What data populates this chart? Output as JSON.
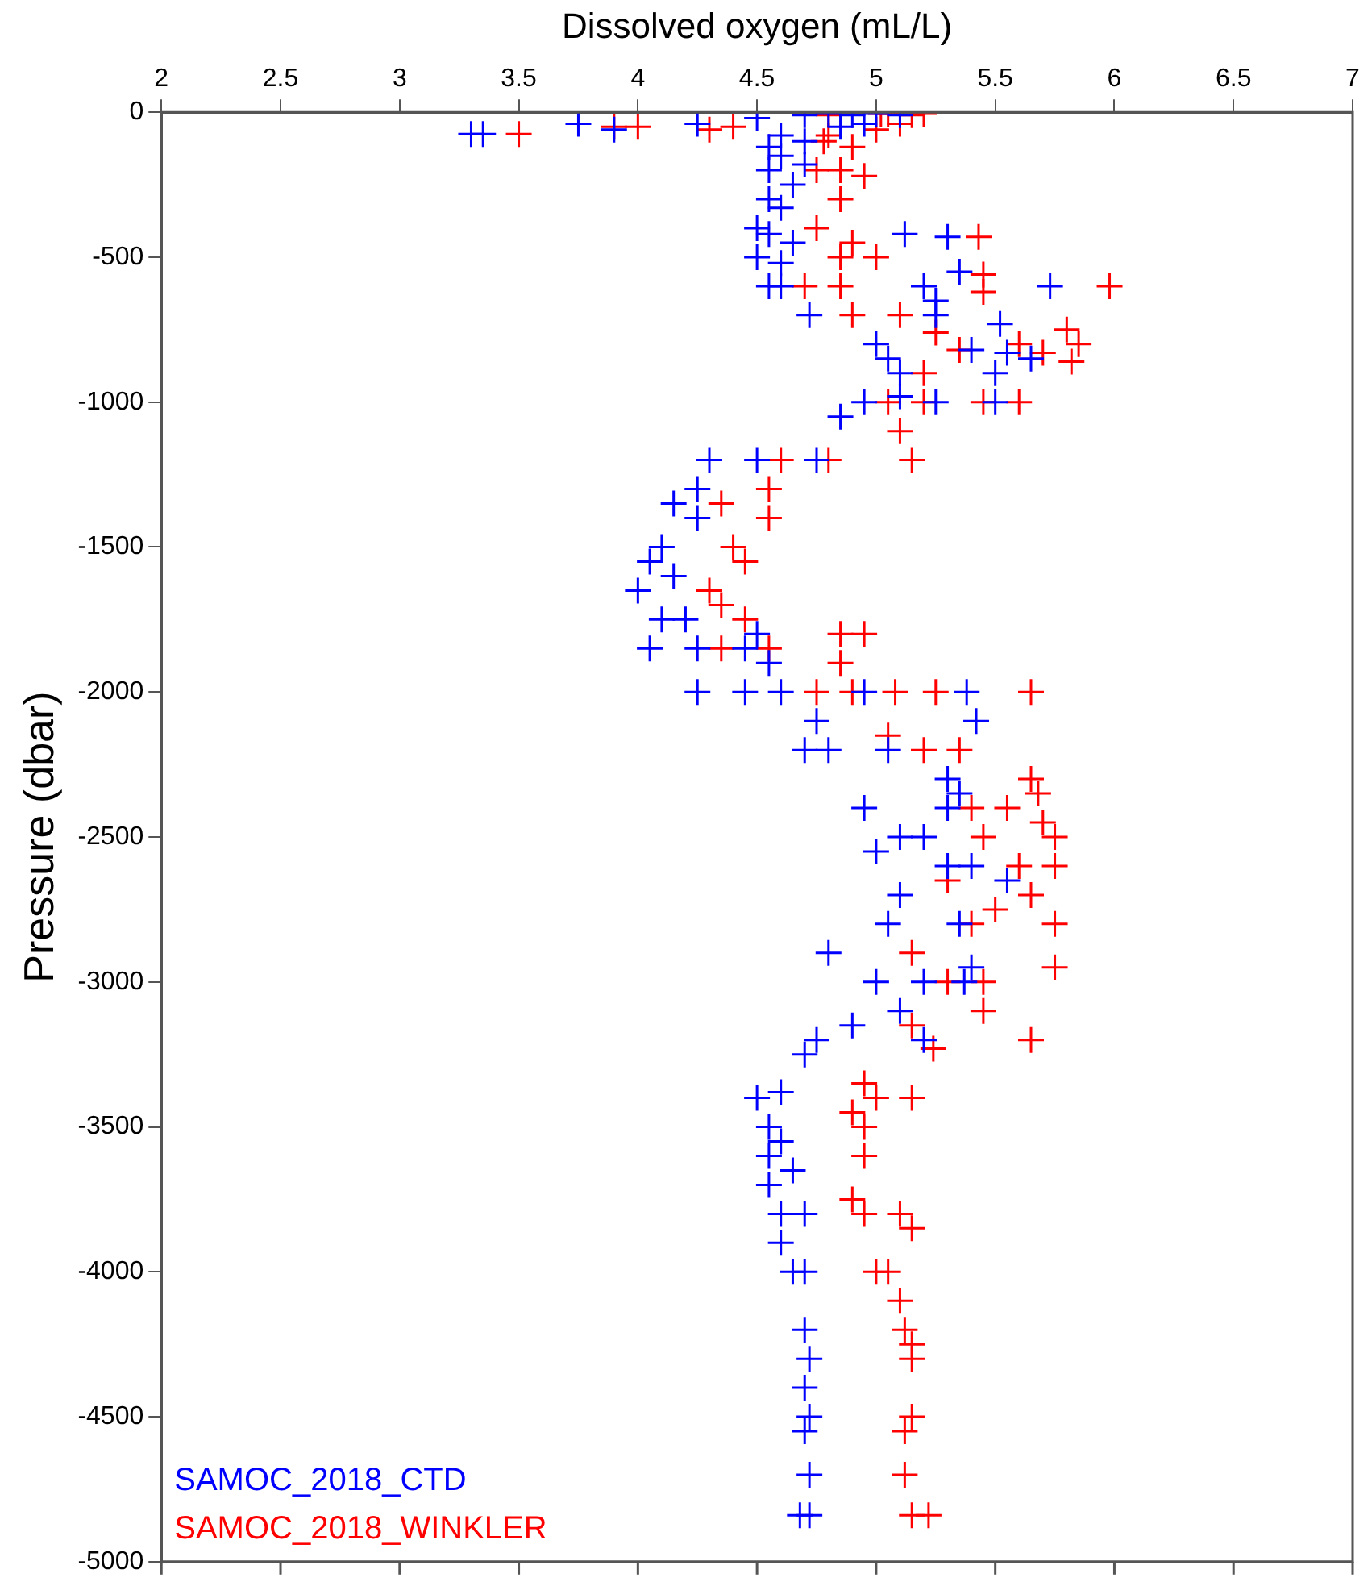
{
  "chart_data": {
    "type": "scatter",
    "xlabel": "Dissolved oxygen (mL/L)",
    "ylabel": "Pressure (dbar)",
    "xlim": [
      2,
      7
    ],
    "xticks": [
      2,
      2.5,
      3,
      3.5,
      4,
      4.5,
      5,
      5.5,
      6,
      6.5,
      7
    ],
    "ylim": [
      -5000,
      0
    ],
    "yticks": [
      -5000,
      -4500,
      -4000,
      -3500,
      -3000,
      -2500,
      -2000,
      -1500,
      -1000,
      -500,
      0
    ],
    "grid": false,
    "marker": "cross",
    "legend": "bottom left",
    "series": [
      {
        "name": "SAMOC_2018_CTD",
        "color": "#0000ff",
        "x": [
          3.3,
          3.35,
          3.75,
          3.9,
          4.25,
          4.5,
          4.7,
          4.8,
          4.9,
          5.0,
          5.1,
          4.85,
          4.95,
          4.6,
          4.7,
          4.55,
          4.6,
          4.7,
          4.55,
          4.65,
          4.55,
          4.6,
          4.5,
          4.55,
          4.65,
          4.5,
          4.6,
          4.55,
          4.6,
          4.72,
          5.12,
          5.3,
          5.35,
          5.25,
          5.2,
          5.73,
          5.25,
          5.52,
          5.0,
          5.05,
          5.4,
          5.55,
          5.65,
          5.5,
          5.1,
          5.1,
          5.25,
          4.95,
          5.5,
          4.85,
          4.75,
          4.3,
          4.5,
          4.25,
          4.15,
          4.25,
          4.1,
          4.05,
          4.15,
          4.0,
          4.1,
          4.2,
          4.25,
          4.05,
          4.45,
          4.5,
          4.55,
          4.45,
          4.25,
          4.6,
          4.95,
          5.38,
          4.75,
          4.7,
          4.8,
          5.42,
          5.05,
          5.3,
          5.35,
          5.3,
          4.95,
          5.1,
          5.2,
          5.0,
          5.3,
          5.4,
          5.55,
          5.1,
          5.05,
          5.35,
          4.8,
          5.4,
          5.0,
          5.2,
          5.37,
          5.1,
          5.2,
          4.9,
          4.75,
          4.7,
          4.5,
          4.6,
          4.55,
          4.6,
          4.55,
          4.65,
          4.55,
          4.6,
          4.7,
          4.6,
          4.65,
          4.7,
          4.7,
          4.72,
          4.7,
          4.72,
          4.7,
          4.72,
          4.68,
          4.72
        ],
        "values": [
          -75,
          -75,
          -40,
          -60,
          -40,
          -20,
          -10,
          -5,
          -10,
          -5,
          -10,
          -50,
          -40,
          -80,
          -100,
          -120,
          -150,
          -180,
          -200,
          -250,
          -300,
          -330,
          -400,
          -420,
          -450,
          -500,
          -520,
          -600,
          -600,
          -700,
          -420,
          -430,
          -550,
          -650,
          -600,
          -600,
          -700,
          -730,
          -800,
          -850,
          -820,
          -830,
          -850,
          -900,
          -900,
          -980,
          -1000,
          -1000,
          -1000,
          -1050,
          -1200,
          -1200,
          -1200,
          -1300,
          -1350,
          -1400,
          -1500,
          -1550,
          -1600,
          -1650,
          -1750,
          -1750,
          -1850,
          -1850,
          -1850,
          -1800,
          -1900,
          -2000,
          -2000,
          -2000,
          -2000,
          -2000,
          -2100,
          -2200,
          -2200,
          -2100,
          -2200,
          -2300,
          -2350,
          -2400,
          -2400,
          -2500,
          -2500,
          -2550,
          -2600,
          -2600,
          -2650,
          -2700,
          -2800,
          -2800,
          -2900,
          -2950,
          -3000,
          -3000,
          -3000,
          -3100,
          -3200,
          -3150,
          -3200,
          -3250,
          -3400,
          -3380,
          -3500,
          -3550,
          -3600,
          -3650,
          -3700,
          -3800,
          -3800,
          -3900,
          -4000,
          -4000,
          -4200,
          -4300,
          -4400,
          -4500,
          -4550,
          -4700,
          -4840,
          -4840
        ]
      },
      {
        "name": "SAMOC_2018_WINKLER",
        "color": "#ff0000",
        "x": [
          3.5,
          3.9,
          4.0,
          4.3,
          4.4,
          4.8,
          5.02,
          5.05,
          5.15,
          5.2,
          5.1,
          5.0,
          4.8,
          4.78,
          4.9,
          4.85,
          4.75,
          4.95,
          4.85,
          4.75,
          4.9,
          4.85,
          5.0,
          4.7,
          4.85,
          4.9,
          5.43,
          5.45,
          5.45,
          5.98,
          5.1,
          5.25,
          5.35,
          5.6,
          5.7,
          5.8,
          5.85,
          5.82,
          5.2,
          5.05,
          5.2,
          5.45,
          5.6,
          5.1,
          5.15,
          4.8,
          4.6,
          4.55,
          4.55,
          4.35,
          4.4,
          4.45,
          4.3,
          4.35,
          4.45,
          4.35,
          4.55,
          4.85,
          4.95,
          4.85,
          4.75,
          4.9,
          5.08,
          5.25,
          5.65,
          5.05,
          5.2,
          5.35,
          5.65,
          5.68,
          5.4,
          5.55,
          5.7,
          5.75,
          5.45,
          5.6,
          5.75,
          5.3,
          5.65,
          5.5,
          5.75,
          5.4,
          5.15,
          5.3,
          5.45,
          5.75,
          5.45,
          5.65,
          5.15,
          5.24,
          4.95,
          5.0,
          5.15,
          4.9,
          4.95,
          4.95,
          4.9,
          4.95,
          5.1,
          5.15,
          5.0,
          5.05,
          5.1,
          5.12,
          5.15,
          5.15,
          5.15,
          5.12,
          5.12,
          5.15,
          5.22
        ],
        "values": [
          -75,
          -50,
          -50,
          -60,
          -50,
          -10,
          -5,
          -5,
          -10,
          -5,
          -40,
          -60,
          -80,
          -100,
          -120,
          -200,
          -200,
          -220,
          -300,
          -400,
          -450,
          -500,
          -500,
          -600,
          -600,
          -700,
          -430,
          -560,
          -620,
          -600,
          -700,
          -760,
          -820,
          -800,
          -830,
          -750,
          -800,
          -860,
          -900,
          -1000,
          -1000,
          -1000,
          -1000,
          -1100,
          -1200,
          -1200,
          -1200,
          -1300,
          -1400,
          -1350,
          -1500,
          -1550,
          -1650,
          -1700,
          -1750,
          -1850,
          -1850,
          -1800,
          -1800,
          -1900,
          -2000,
          -2000,
          -2000,
          -2000,
          -2000,
          -2150,
          -2200,
          -2200,
          -2300,
          -2350,
          -2400,
          -2400,
          -2450,
          -2500,
          -2500,
          -2600,
          -2600,
          -2650,
          -2700,
          -2750,
          -2800,
          -2800,
          -2900,
          -3000,
          -3000,
          -2950,
          -3100,
          -3200,
          -3150,
          -3230,
          -3350,
          -3400,
          -3400,
          -3450,
          -3500,
          -3600,
          -3750,
          -3800,
          -3800,
          -3850,
          -4000,
          -4000,
          -4100,
          -4200,
          -4250,
          -4300,
          -4500,
          -4550,
          -4700,
          -4840,
          -4840
        ]
      }
    ]
  }
}
